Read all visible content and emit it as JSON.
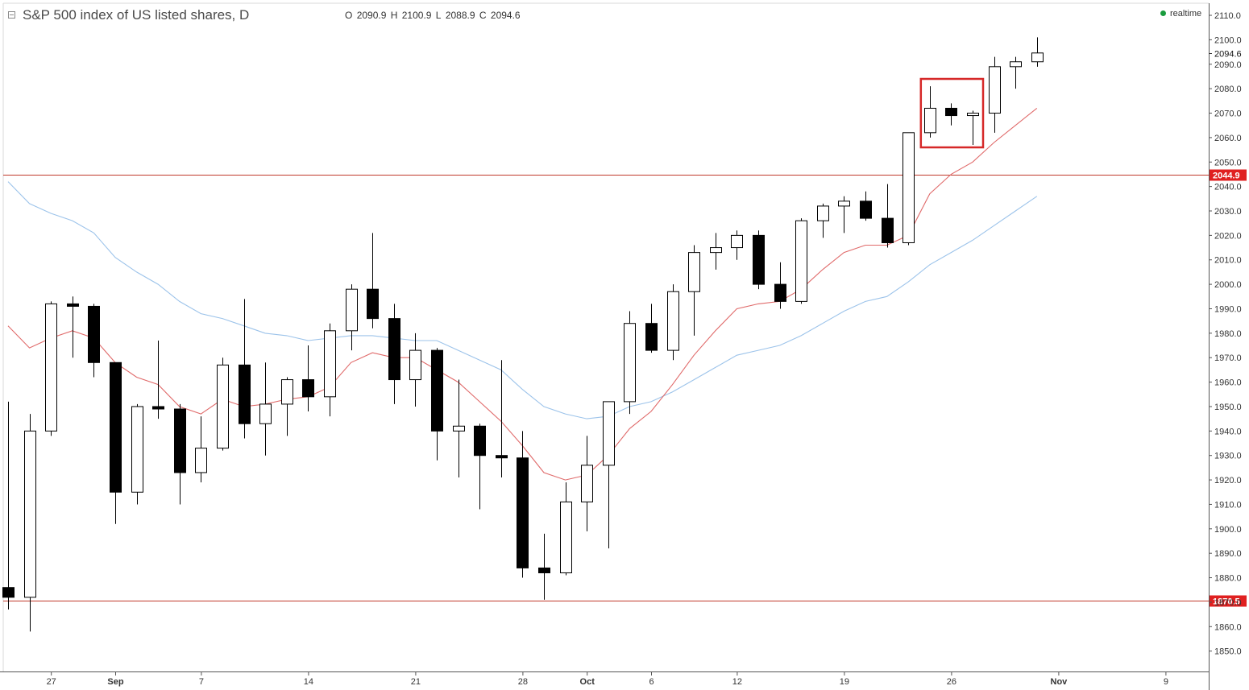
{
  "header": {
    "title": "S&P 500 index of US listed shares, D",
    "ohlc": [
      {
        "key": "O",
        "value": "2090.9"
      },
      {
        "key": "H",
        "value": "2100.9"
      },
      {
        "key": "L",
        "value": "2088.9"
      },
      {
        "key": "C",
        "value": "2094.6"
      }
    ],
    "realtime_label": "realtime",
    "realtime_color": "#1a9c3e"
  },
  "chart_data": {
    "type": "candlestick",
    "ylim": [
      1841,
      2111
    ],
    "y_ticks": [
      1850,
      1860,
      1870,
      1880,
      1890,
      1900,
      1910,
      1920,
      1930,
      1940,
      1950,
      1960,
      1970,
      1980,
      1990,
      2000,
      2010,
      2020,
      2030,
      2040,
      2050,
      2060,
      2070,
      2080,
      2090,
      2100,
      2110
    ],
    "y_tick_labels": [
      "1850.0",
      "1860.0",
      "1870.0",
      "1880.0",
      "1890.0",
      "1900.0",
      "1910.0",
      "1920.0",
      "1930.0",
      "1940.0",
      "1950.0",
      "1960.0",
      "1970.0",
      "1980.0",
      "1990.0",
      "2000.0",
      "2010.0",
      "2020.0",
      "2030.0",
      "2040.0",
      "2050.0",
      "2060.0",
      "2070.0",
      "2080.0",
      "2090.0",
      "2100.0",
      "2110.0"
    ],
    "x_labels": [
      {
        "label": "27",
        "at": 2.0
      },
      {
        "label": "Sep",
        "at": 5.0
      },
      {
        "label": "7",
        "at": 9.0
      },
      {
        "label": "14",
        "at": 14.0
      },
      {
        "label": "21",
        "at": 19.0
      },
      {
        "label": "28",
        "at": 24.0
      },
      {
        "label": "Oct",
        "at": 27.0
      },
      {
        "label": "6",
        "at": 30.0
      },
      {
        "label": "12",
        "at": 34.0
      },
      {
        "label": "19",
        "at": 39.0
      },
      {
        "label": "26",
        "at": 44.0
      },
      {
        "label": "Nov",
        "at": 49.0
      },
      {
        "label": "9",
        "at": 54.0
      }
    ],
    "candles": [
      {
        "o": 1876,
        "h": 1952,
        "l": 1867,
        "c": 1872
      },
      {
        "o": 1872,
        "h": 1947,
        "l": 1858,
        "c": 1940
      },
      {
        "o": 1940,
        "h": 1993,
        "l": 1938,
        "c": 1992
      },
      {
        "o": 1992,
        "h": 1995,
        "l": 1970,
        "c": 1991
      },
      {
        "o": 1991,
        "h": 1992,
        "l": 1962,
        "c": 1968
      },
      {
        "o": 1968,
        "h": 1968,
        "l": 1902,
        "c": 1915
      },
      {
        "o": 1915,
        "h": 1951,
        "l": 1910,
        "c": 1950
      },
      {
        "o": 1950,
        "h": 1977,
        "l": 1945,
        "c": 1949
      },
      {
        "o": 1949,
        "h": 1951,
        "l": 1910,
        "c": 1923
      },
      {
        "o": 1923,
        "h": 1946,
        "l": 1919,
        "c": 1933
      },
      {
        "o": 1933,
        "h": 1970,
        "l": 1932,
        "c": 1967
      },
      {
        "o": 1967,
        "h": 1994,
        "l": 1937,
        "c": 1943
      },
      {
        "o": 1943,
        "h": 1968,
        "l": 1930,
        "c": 1951
      },
      {
        "o": 1951,
        "h": 1962,
        "l": 1938,
        "c": 1961
      },
      {
        "o": 1961,
        "h": 1975,
        "l": 1948,
        "c": 1954
      },
      {
        "o": 1954,
        "h": 1984,
        "l": 1946,
        "c": 1981
      },
      {
        "o": 1981,
        "h": 2000,
        "l": 1973,
        "c": 1998
      },
      {
        "o": 1998,
        "h": 2021,
        "l": 1982,
        "c": 1986
      },
      {
        "o": 1986,
        "h": 1992,
        "l": 1951,
        "c": 1961
      },
      {
        "o": 1961,
        "h": 1980,
        "l": 1950,
        "c": 1973
      },
      {
        "o": 1973,
        "h": 1974,
        "l": 1928,
        "c": 1940
      },
      {
        "o": 1940,
        "h": 1961,
        "l": 1921,
        "c": 1942
      },
      {
        "o": 1942,
        "h": 1943,
        "l": 1908,
        "c": 1930
      },
      {
        "o": 1930,
        "h": 1969,
        "l": 1921,
        "c": 1929
      },
      {
        "o": 1929,
        "h": 1940,
        "l": 1880,
        "c": 1884
      },
      {
        "o": 1884,
        "h": 1898,
        "l": 1871,
        "c": 1882
      },
      {
        "o": 1882,
        "h": 1919,
        "l": 1881,
        "c": 1911
      },
      {
        "o": 1911,
        "h": 1938,
        "l": 1899,
        "c": 1926
      },
      {
        "o": 1926,
        "h": 1952,
        "l": 1892,
        "c": 1952
      },
      {
        "o": 1952,
        "h": 1989,
        "l": 1947,
        "c": 1984
      },
      {
        "o": 1984,
        "h": 1992,
        "l": 1972,
        "c": 1973
      },
      {
        "o": 1973,
        "h": 2000,
        "l": 1969,
        "c": 1997
      },
      {
        "o": 1997,
        "h": 2016,
        "l": 1979,
        "c": 2013
      },
      {
        "o": 2013,
        "h": 2021,
        "l": 2006,
        "c": 2015
      },
      {
        "o": 2015,
        "h": 2022,
        "l": 2010,
        "c": 2020
      },
      {
        "o": 2020,
        "h": 2022,
        "l": 1998,
        "c": 2000
      },
      {
        "o": 2000,
        "h": 2009,
        "l": 1990,
        "c": 1993
      },
      {
        "o": 1993,
        "h": 2027,
        "l": 1992,
        "c": 2026
      },
      {
        "o": 2026,
        "h": 2033,
        "l": 2019,
        "c": 2032
      },
      {
        "o": 2032,
        "h": 2036,
        "l": 2021,
        "c": 2034
      },
      {
        "o": 2034,
        "h": 2038,
        "l": 2026,
        "c": 2027
      },
      {
        "o": 2027,
        "h": 2041,
        "l": 2015,
        "c": 2017
      },
      {
        "o": 2017,
        "h": 2062,
        "l": 2016,
        "c": 2062
      },
      {
        "o": 2062,
        "h": 2081,
        "l": 2060,
        "c": 2072
      },
      {
        "o": 2072,
        "h": 2074,
        "l": 2065,
        "c": 2069
      },
      {
        "o": 2069,
        "h": 2071,
        "l": 2057,
        "c": 2070
      },
      {
        "o": 2070,
        "h": 2093,
        "l": 2062,
        "c": 2089
      },
      {
        "o": 2089,
        "h": 2093,
        "l": 2080,
        "c": 2091
      },
      {
        "o": 2091,
        "h": 2101,
        "l": 2089,
        "c": 2094.6
      }
    ],
    "ma_fast": {
      "color": "#e06a6a",
      "values": [
        1983,
        1974,
        1978,
        1981,
        1978,
        1968,
        1962,
        1959,
        1950,
        1947,
        1953,
        1950,
        1951,
        1953,
        1954,
        1958,
        1968,
        1972,
        1970,
        1970,
        1965,
        1960,
        1952,
        1944,
        1934,
        1923,
        1920,
        1922,
        1930,
        1941,
        1948,
        1959,
        1971,
        1981,
        1990,
        1992,
        1993,
        1998,
        2006,
        2013,
        2016,
        2016,
        2020,
        2037,
        2045,
        2050,
        2058,
        2065,
        2072
      ]
    },
    "ma_slow": {
      "color": "#9cc3ea",
      "values": [
        2042,
        2033,
        2029,
        2026,
        2021,
        2011,
        2005,
        2000,
        1993,
        1988,
        1986,
        1983,
        1980,
        1979,
        1977,
        1978,
        1979,
        1979,
        1978,
        1977,
        1977,
        1973,
        1969,
        1965,
        1957,
        1950,
        1947,
        1945,
        1946,
        1950,
        1952,
        1956,
        1961,
        1966,
        1971,
        1973,
        1975,
        1979,
        1984,
        1989,
        1993,
        1995,
        2001,
        2008,
        2013,
        2018,
        2024,
        2030,
        2036
      ]
    },
    "levels": [
      {
        "value": 2044.9,
        "label": "2044.9",
        "color": "#c0392b"
      },
      {
        "value": 1870.5,
        "label": "1870.5",
        "color": "#c0392b"
      }
    ],
    "last_price": {
      "value": 2094.6,
      "label": "2094.6"
    },
    "highlight_box": {
      "from_index": 43,
      "to_index": 45,
      "top": 2084,
      "bottom": 2056,
      "color": "#d62828"
    }
  }
}
